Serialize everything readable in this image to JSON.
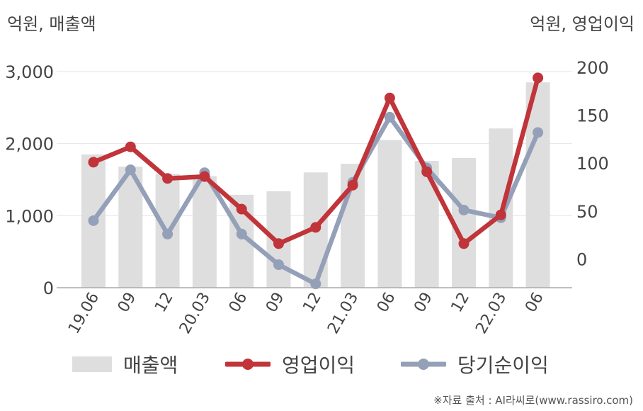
{
  "left_unit": "억원, 매출액",
  "right_unit": "억원, 영업이익",
  "source": "※자료 출처 : AI라씨로(www.rassiro.com)",
  "colors": {
    "revenue": "#dedede",
    "operating_profit": "#c0343a",
    "net_income": "#94a0b8",
    "grid": "#e6e6e6",
    "axis": "#aaaaaa",
    "text": "#444444"
  },
  "chart_data": {
    "type": "bar+line",
    "categories": [
      "19.06",
      "09",
      "12",
      "20.03",
      "06",
      "09",
      "12",
      "21.03",
      "06",
      "09",
      "12",
      "22.03",
      "06"
    ],
    "left_axis": {
      "ticks": [
        "0",
        "1,000",
        "2,000",
        "3,000"
      ],
      "tick_values": [
        0,
        1000,
        2000,
        3000
      ],
      "ylim": [
        0,
        3000
      ]
    },
    "right_axis": {
      "ticks": [
        "0",
        "50",
        "100",
        "150",
        "200"
      ],
      "tick_values": [
        0,
        50,
        100,
        150,
        200
      ],
      "ylim": [
        -30,
        200
      ]
    },
    "grid": true,
    "legend_position": "bottom",
    "series": [
      {
        "name": "매출액",
        "type": "bar",
        "axis": "left",
        "values": [
          1850,
          1680,
          1580,
          1550,
          1290,
          1340,
          1600,
          1720,
          2050,
          1760,
          1800,
          2210,
          2850
        ]
      },
      {
        "name": "영업이익",
        "type": "line",
        "axis": "right",
        "values": [
          101,
          117,
          84,
          86,
          52,
          16,
          33,
          77,
          168,
          91,
          16,
          46,
          189
        ]
      },
      {
        "name": "당기순이익",
        "type": "line",
        "axis": "right",
        "values": [
          40,
          93,
          26,
          90,
          26,
          -6,
          -26,
          80,
          148,
          95,
          51,
          43,
          132
        ]
      }
    ]
  }
}
